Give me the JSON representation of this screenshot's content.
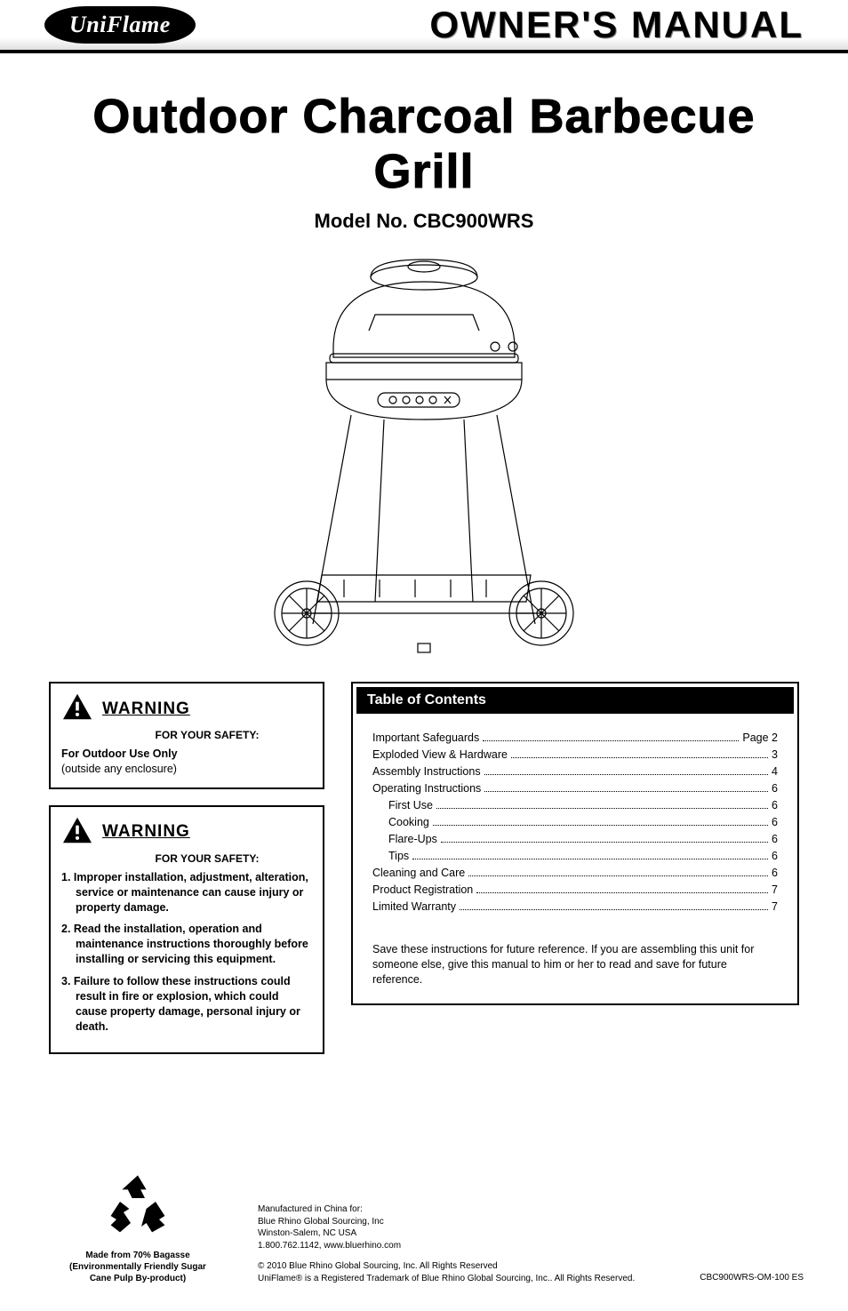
{
  "header": {
    "logo_text": "UniFlame",
    "title": "OWNER'S MANUAL"
  },
  "main": {
    "title": "Outdoor Charcoal Barbecue Grill",
    "model": "Model No. CBC900WRS"
  },
  "warning1": {
    "title": "WARNING",
    "subtitle": "FOR YOUR SAFETY:",
    "bold_line": "For Outdoor Use Only",
    "normal_line": "(outside any enclosure)"
  },
  "warning2": {
    "title": "WARNING",
    "subtitle": "FOR YOUR SAFETY:",
    "items": [
      "1. Improper installation, adjustment, alteration, service or maintenance can cause injury or property damage.",
      "2. Read the installation, operation and maintenance instructions thoroughly before installing or servicing this equipment.",
      "3. Failure to follow these instructions could result in fire or explosion, which could cause property damage, personal injury or death."
    ]
  },
  "toc": {
    "header": "Table of Contents",
    "rows": [
      {
        "label": "Important Safeguards",
        "page": "Page 2",
        "indent": false
      },
      {
        "label": "Exploded View & Hardware",
        "page": "3",
        "indent": false
      },
      {
        "label": "Assembly Instructions",
        "page": "4",
        "indent": false
      },
      {
        "label": "Operating Instructions",
        "page": "6",
        "indent": false
      },
      {
        "label": "First Use",
        "page": "6",
        "indent": true
      },
      {
        "label": "Cooking",
        "page": "6",
        "indent": true
      },
      {
        "label": "Flare-Ups",
        "page": "6",
        "indent": true
      },
      {
        "label": "Tips",
        "page": "6",
        "indent": true
      },
      {
        "label": "Cleaning and Care",
        "page": "6",
        "indent": false
      },
      {
        "label": "Product Registration",
        "page": "7",
        "indent": false
      },
      {
        "label": "Limited Warranty",
        "page": "7",
        "indent": false
      }
    ],
    "save_text": "Save these instructions for future reference.  If you are assembling this unit for someone else,  give this manual to him or her to read and save for future reference."
  },
  "footer": {
    "recycle": {
      "line1": "Made from 70% Bagasse",
      "line2": "(Environmentally Friendly Sugar",
      "line3": "Cane Pulp By-product)"
    },
    "mfg": {
      "l1": "Manufactured in China for:",
      "l2": "Blue Rhino Global Sourcing, Inc",
      "l3": "Winston-Salem, NC USA",
      "l4": "1.800.762.1142, www.bluerhino.com"
    },
    "copyright": {
      "l1": "© 2010 Blue Rhino Global Sourcing, Inc. All Rights Reserved",
      "l2": "UniFlame® is a Registered Trademark of Blue Rhino Global Sourcing, Inc.. All Rights Reserved."
    },
    "code": "CBC900WRS-OM-100 ES"
  },
  "colors": {
    "black": "#000000",
    "white": "#ffffff",
    "gray_gradient_end": "#e0e0e0"
  }
}
